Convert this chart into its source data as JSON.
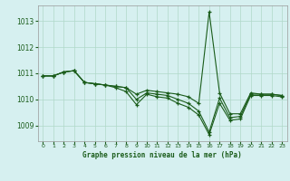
{
  "title": "Graphe pression niveau de la mer (hPa)",
  "background_color": "#d6f0f0",
  "grid_color": "#b0d8c8",
  "line_color": "#1a5c1a",
  "marker_color": "#1a5c1a",
  "xlim": [
    -0.5,
    23.5
  ],
  "ylim": [
    1008.4,
    1013.6
  ],
  "yticks": [
    1009,
    1010,
    1011,
    1012,
    1013
  ],
  "xticks": [
    0,
    1,
    2,
    3,
    4,
    5,
    6,
    7,
    8,
    9,
    10,
    11,
    12,
    13,
    14,
    15,
    16,
    17,
    18,
    19,
    20,
    21,
    22,
    23
  ],
  "series": [
    [
      1010.9,
      1010.9,
      1011.05,
      1011.1,
      1010.65,
      1010.6,
      1010.55,
      1010.5,
      1010.45,
      1010.2,
      1010.35,
      1010.3,
      1010.25,
      1010.2,
      1010.1,
      1009.85,
      1013.35,
      1010.25,
      1009.45,
      1009.45,
      1010.25,
      1010.2,
      1010.2,
      1010.15
    ],
    [
      1010.9,
      1010.9,
      1011.05,
      1011.1,
      1010.65,
      1010.6,
      1010.55,
      1010.5,
      1010.45,
      1010.0,
      1010.25,
      1010.2,
      1010.15,
      1010.0,
      1009.85,
      1009.55,
      1008.75,
      1010.05,
      1009.3,
      1009.35,
      1010.2,
      1010.2,
      1010.2,
      1010.15
    ],
    [
      1010.9,
      1010.9,
      1011.05,
      1011.1,
      1010.65,
      1010.6,
      1010.55,
      1010.45,
      1010.3,
      1009.8,
      1010.2,
      1010.1,
      1010.05,
      1009.85,
      1009.7,
      1009.4,
      1008.65,
      1009.85,
      1009.2,
      1009.25,
      1010.15,
      1010.15,
      1010.15,
      1010.1
    ]
  ]
}
